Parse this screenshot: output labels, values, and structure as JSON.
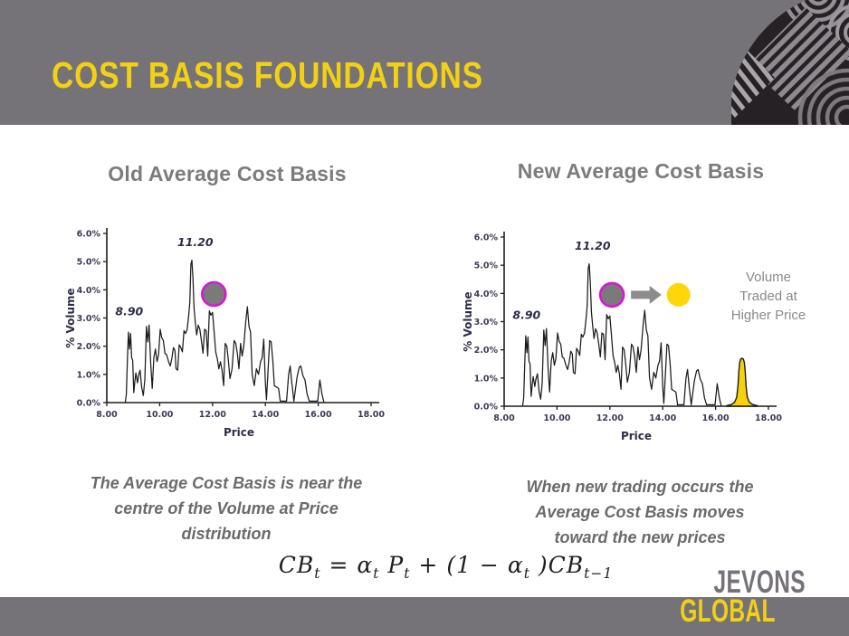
{
  "slide": {
    "title": "COST BASIS FOUNDATIONS",
    "colors": {
      "band_gray": "#757278",
      "brand_yellow": "#F2D114",
      "heading_gray": "#7C7C7C",
      "caption_gray": "#6A6A6A",
      "axis_ink": "#2E2E4A",
      "line_black": "#1C1C1C",
      "magenta_ring": "#D816D8",
      "marker_gray": "#7A7A7A",
      "marker_yellow": "#FFD60A",
      "spike_yellow": "#F5D20A",
      "arrow_gray": "#8C8C8C"
    }
  },
  "left_panel": {
    "heading": "Old Average Cost Basis",
    "caption_lines": [
      "The Average Cost Basis is near the",
      "centre of the Volume at Price",
      "distribution"
    ]
  },
  "right_panel": {
    "heading": "New Average Cost Basis",
    "caption_lines": [
      "When new trading occurs the",
      "Average Cost Basis moves",
      "toward the new prices"
    ],
    "side_label_lines": [
      "Volume",
      "Traded at",
      "Higher Price"
    ]
  },
  "formula": {
    "segments": [
      {
        "text": "CB",
        "sub": "t"
      },
      {
        "text": " = α",
        "sub": "t"
      },
      {
        "text": " P",
        "sub": "t"
      },
      {
        "text": " + (1 − α",
        "sub": "t"
      },
      {
        "text": " )CB",
        "sub": "t−1"
      }
    ]
  },
  "logo": {
    "top": "JEVONS",
    "bottom": "GLOBAL"
  },
  "volume_profile_points": [
    [
      8.7,
      0.0
    ],
    [
      8.74,
      0.3
    ],
    [
      8.78,
      1.55
    ],
    [
      8.82,
      2.5
    ],
    [
      8.86,
      1.9
    ],
    [
      8.9,
      2.45
    ],
    [
      8.94,
      1.6
    ],
    [
      8.98,
      1.5
    ],
    [
      9.02,
      0.35
    ],
    [
      9.06,
      0.75
    ],
    [
      9.1,
      1.05
    ],
    [
      9.16,
      0.7
    ],
    [
      9.2,
      0.95
    ],
    [
      9.26,
      1.15
    ],
    [
      9.32,
      0.55
    ],
    [
      9.38,
      0.25
    ],
    [
      9.44,
      0.8
    ],
    [
      9.5,
      2.7
    ],
    [
      9.55,
      2.15
    ],
    [
      9.6,
      2.75
    ],
    [
      9.66,
      1.4
    ],
    [
      9.72,
      0.5
    ],
    [
      9.78,
      1.6
    ],
    [
      9.84,
      1.9
    ],
    [
      9.9,
      1.45
    ],
    [
      9.96,
      1.7
    ],
    [
      10.02,
      2.6
    ],
    [
      10.08,
      2.3
    ],
    [
      10.14,
      2.2
    ],
    [
      10.2,
      1.75
    ],
    [
      10.26,
      1.7
    ],
    [
      10.34,
      1.45
    ],
    [
      10.4,
      1.3
    ],
    [
      10.46,
      1.55
    ],
    [
      10.52,
      1.95
    ],
    [
      10.58,
      1.85
    ],
    [
      10.62,
      1.2
    ],
    [
      10.68,
      1.15
    ],
    [
      10.74,
      2.05
    ],
    [
      10.8,
      1.95
    ],
    [
      10.86,
      1.8
    ],
    [
      10.92,
      2.55
    ],
    [
      10.98,
      2.45
    ],
    [
      11.04,
      2.6
    ],
    [
      11.1,
      3.1
    ],
    [
      11.14,
      3.55
    ],
    [
      11.18,
      4.9
    ],
    [
      11.22,
      5.05
    ],
    [
      11.26,
      4.4
    ],
    [
      11.3,
      3.35
    ],
    [
      11.35,
      2.85
    ],
    [
      11.4,
      2.4
    ],
    [
      11.46,
      2.75
    ],
    [
      11.52,
      2.6
    ],
    [
      11.58,
      2.2
    ],
    [
      11.64,
      1.75
    ],
    [
      11.7,
      2.6
    ],
    [
      11.76,
      2.55
    ],
    [
      11.82,
      1.65
    ],
    [
      11.88,
      3.25
    ],
    [
      11.94,
      3.1
    ],
    [
      12.0,
      3.2
    ],
    [
      12.06,
      2.5
    ],
    [
      12.12,
      1.8
    ],
    [
      12.18,
      1.55
    ],
    [
      12.24,
      1.2
    ],
    [
      12.3,
      1.45
    ],
    [
      12.36,
      1.15
    ],
    [
      12.42,
      0.6
    ],
    [
      12.48,
      2.1
    ],
    [
      12.54,
      2.0
    ],
    [
      12.6,
      1.5
    ],
    [
      12.66,
      0.85
    ],
    [
      12.74,
      1.2
    ],
    [
      12.82,
      2.2
    ],
    [
      12.88,
      2.1
    ],
    [
      12.94,
      1.75
    ],
    [
      13.0,
      1.2
    ],
    [
      13.06,
      2.1
    ],
    [
      13.12,
      1.65
    ],
    [
      13.18,
      2.0
    ],
    [
      13.26,
      2.9
    ],
    [
      13.32,
      3.4
    ],
    [
      13.38,
      2.7
    ],
    [
      13.44,
      2.5
    ],
    [
      13.5,
      1.0
    ],
    [
      13.58,
      0.6
    ],
    [
      13.66,
      1.2
    ],
    [
      13.74,
      1.0
    ],
    [
      13.82,
      1.45
    ],
    [
      13.88,
      1.6
    ],
    [
      13.94,
      2.25
    ],
    [
      14.0,
      0.7
    ],
    [
      14.04,
      0.1
    ],
    [
      14.1,
      1.1
    ],
    [
      14.16,
      2.2
    ],
    [
      14.22,
      2.15
    ],
    [
      14.28,
      1.5
    ],
    [
      14.34,
      0.6
    ],
    [
      14.42,
      0.55
    ],
    [
      14.5,
      0.5
    ],
    [
      14.56,
      0.05
    ],
    [
      14.8,
      0.05
    ],
    [
      14.88,
      1.0
    ],
    [
      14.94,
      1.3
    ],
    [
      15.0,
      0.7
    ],
    [
      15.08,
      0.05
    ],
    [
      15.2,
      0.9
    ],
    [
      15.28,
      1.25
    ],
    [
      15.34,
      1.3
    ],
    [
      15.42,
      0.95
    ],
    [
      15.5,
      0.8
    ],
    [
      15.58,
      0.3
    ],
    [
      15.66,
      0.05
    ],
    [
      15.98,
      0.05
    ],
    [
      16.06,
      0.8
    ],
    [
      16.14,
      0.3
    ],
    [
      16.22,
      0.0
    ]
  ],
  "chart_data": [
    {
      "id": "old-average-cost-basis",
      "type": "line",
      "title": "Old Average Cost Basis",
      "xlabel": "Price",
      "ylabel": "% Volume",
      "xlim": [
        8,
        18
      ],
      "ylim": [
        0,
        6
      ],
      "grid": false,
      "x_ticks": [
        8,
        10,
        12,
        14,
        16,
        18
      ],
      "x_tick_labels": [
        "8.00",
        "10.00",
        "12.00",
        "14.00",
        "16.00",
        "18.00"
      ],
      "y_ticks": [
        0,
        1,
        2,
        3,
        4,
        5,
        6
      ],
      "y_tick_labels": [
        "0.0%",
        "1.0%",
        "2.0%",
        "3.0%",
        "4.0%",
        "5.0%",
        "6.0%"
      ],
      "series": [
        {
          "name": "volume-at-price-line",
          "points_key": "volume_profile_points",
          "stroke": "line_black"
        }
      ],
      "annotations": [
        {
          "text": "8.90",
          "x": 8.85,
          "y": 3.1
        },
        {
          "text": "11.20",
          "x": 11.35,
          "y": 5.55
        }
      ],
      "markers": [
        {
          "type": "circle",
          "name": "old-cost-basis-marker",
          "x": 12.05,
          "y": 3.85,
          "r": 13,
          "fill": "marker_gray",
          "ring": "magenta_ring"
        }
      ]
    },
    {
      "id": "new-average-cost-basis",
      "type": "line",
      "title": "New Average Cost Basis",
      "xlabel": "Price",
      "ylabel": "% Volume",
      "xlim": [
        8,
        18
      ],
      "ylim": [
        0,
        6
      ],
      "grid": false,
      "x_ticks": [
        8,
        10,
        12,
        14,
        16,
        18
      ],
      "x_tick_labels": [
        "8.00",
        "10.00",
        "12.00",
        "14.00",
        "16.00",
        "18.00"
      ],
      "y_ticks": [
        0,
        1,
        2,
        3,
        4,
        5,
        6
      ],
      "y_tick_labels": [
        "0.0%",
        "1.0%",
        "2.0%",
        "3.0%",
        "4.0%",
        "5.0%",
        "6.0%"
      ],
      "series": [
        {
          "name": "volume-at-price-line",
          "points_key": "volume_profile_points",
          "stroke": "line_black"
        },
        {
          "name": "new-volume-spike-at-17",
          "fill": "spike_yellow",
          "stroke": "line_black",
          "points": [
            [
              16.42,
              0.02
            ],
            [
              16.6,
              0.06
            ],
            [
              16.72,
              0.14
            ],
            [
              16.8,
              0.32
            ],
            [
              16.85,
              0.75
            ],
            [
              16.88,
              1.25
            ],
            [
              16.91,
              1.55
            ],
            [
              16.95,
              1.67
            ],
            [
              17.0,
              1.7
            ],
            [
              17.05,
              1.67
            ],
            [
              17.09,
              1.55
            ],
            [
              17.12,
              1.25
            ],
            [
              17.15,
              0.75
            ],
            [
              17.2,
              0.32
            ],
            [
              17.28,
              0.14
            ],
            [
              17.4,
              0.06
            ],
            [
              17.58,
              0.02
            ]
          ]
        }
      ],
      "annotations": [
        {
          "text": "8.90",
          "x": 8.85,
          "y": 3.1
        },
        {
          "text": "11.20",
          "x": 11.35,
          "y": 5.55
        }
      ],
      "markers": [
        {
          "type": "circle",
          "name": "old-cost-basis-marker",
          "x": 12.08,
          "y": 3.95,
          "r": 13,
          "fill": "marker_gray",
          "ring": "magenta_ring"
        },
        {
          "type": "arrow",
          "name": "shift-arrow",
          "x1": 12.8,
          "x2": 13.95,
          "y": 3.95,
          "color": "arrow_gray"
        },
        {
          "type": "circle",
          "name": "new-cost-basis-marker",
          "x": 14.6,
          "y": 3.95,
          "r": 13,
          "fill": "marker_yellow"
        }
      ]
    }
  ]
}
